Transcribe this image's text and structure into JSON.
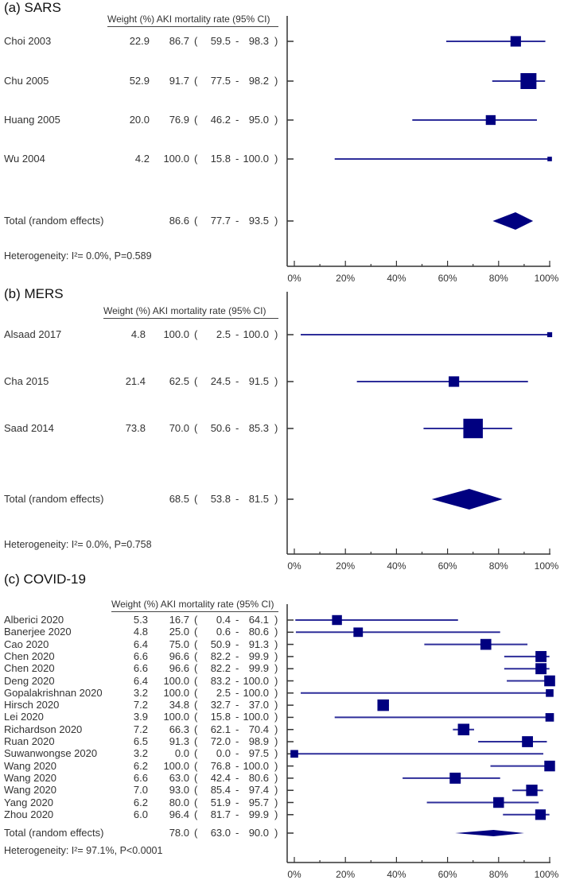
{
  "colors": {
    "mark": "#000080",
    "ci_line": "#2e2e9a",
    "axis": "#333333"
  },
  "chart_data": [
    {
      "type": "forest",
      "title": "(a) SARS",
      "header": "Weight (%) AKI mortality rate (95% CI)",
      "xlim": [
        0,
        100
      ],
      "xticks": [
        "0%",
        "20%",
        "40%",
        "60%",
        "80%",
        "100%"
      ],
      "studies": [
        {
          "name": "Choi 2003",
          "weight": 22.9,
          "est": 86.7,
          "lo": 59.5,
          "hi": 98.3
        },
        {
          "name": "Chu 2005",
          "weight": 52.9,
          "est": 91.7,
          "lo": 77.5,
          "hi": 98.2
        },
        {
          "name": "Huang 2005",
          "weight": 20.0,
          "est": 76.9,
          "lo": 46.2,
          "hi": 95.0
        },
        {
          "name": "Wu 2004",
          "weight": 4.2,
          "est": 100.0,
          "lo": 15.8,
          "hi": 100.0
        }
      ],
      "total": {
        "name": "Total (random effects)",
        "est": 86.6,
        "lo": 77.7,
        "hi": 93.5
      },
      "heterogeneity": "Heterogeneity: I²= 0.0%, P=0.589"
    },
    {
      "type": "forest",
      "title": "(b) MERS",
      "header": "Weight (%) AKI mortality rate (95% CI)",
      "xlim": [
        0,
        100
      ],
      "xticks": [
        "0%",
        "20%",
        "40%",
        "60%",
        "80%",
        "100%"
      ],
      "studies": [
        {
          "name": "Alsaad 2017",
          "weight": 4.8,
          "est": 100.0,
          "lo": 2.5,
          "hi": 100.0
        },
        {
          "name": "Cha 2015",
          "weight": 21.4,
          "est": 62.5,
          "lo": 24.5,
          "hi": 91.5
        },
        {
          "name": "Saad 2014",
          "weight": 73.8,
          "est": 70.0,
          "lo": 50.6,
          "hi": 85.3
        }
      ],
      "total": {
        "name": "Total (random effects)",
        "est": 68.5,
        "lo": 53.8,
        "hi": 81.5
      },
      "heterogeneity": "Heterogeneity: I²= 0.0%, P=0.758"
    },
    {
      "type": "forest",
      "title": "(c) COVID-19",
      "header": "Weight (%) AKI mortality rate (95% CI)",
      "xlim": [
        0,
        100
      ],
      "xticks": [
        "0%",
        "20%",
        "40%",
        "60%",
        "80%",
        "100%"
      ],
      "studies": [
        {
          "name": "Alberici 2020",
          "weight": 5.3,
          "est": 16.7,
          "lo": 0.4,
          "hi": 64.1
        },
        {
          "name": "Banerjee 2020",
          "weight": 4.8,
          "est": 25.0,
          "lo": 0.6,
          "hi": 80.6
        },
        {
          "name": "Cao 2020",
          "weight": 6.4,
          "est": 75.0,
          "lo": 50.9,
          "hi": 91.3
        },
        {
          "name": "Chen 2020",
          "weight": 6.6,
          "est": 96.6,
          "lo": 82.2,
          "hi": 99.9
        },
        {
          "name": "Chen 2020",
          "weight": 6.6,
          "est": 96.6,
          "lo": 82.2,
          "hi": 99.9
        },
        {
          "name": "Deng 2020",
          "weight": 6.4,
          "est": 100.0,
          "lo": 83.2,
          "hi": 100.0
        },
        {
          "name": "Gopalakrishnan 2020",
          "weight": 3.2,
          "est": 100.0,
          "lo": 2.5,
          "hi": 100.0
        },
        {
          "name": "Hirsch 2020",
          "weight": 7.2,
          "est": 34.8,
          "lo": 32.7,
          "hi": 37.0
        },
        {
          "name": "Lei 2020",
          "weight": 3.9,
          "est": 100.0,
          "lo": 15.8,
          "hi": 100.0
        },
        {
          "name": "Richardson 2020",
          "weight": 7.2,
          "est": 66.3,
          "lo": 62.1,
          "hi": 70.4
        },
        {
          "name": "Ruan 2020",
          "weight": 6.5,
          "est": 91.3,
          "lo": 72.0,
          "hi": 98.9
        },
        {
          "name": "Suwanwongse 2020",
          "weight": 3.2,
          "est": 0.0,
          "lo": 0.0,
          "hi": 97.5
        },
        {
          "name": "Wang 2020",
          "weight": 6.2,
          "est": 100.0,
          "lo": 76.8,
          "hi": 100.0
        },
        {
          "name": "Wang 2020",
          "weight": 6.6,
          "est": 63.0,
          "lo": 42.4,
          "hi": 80.6
        },
        {
          "name": "Wang 2020",
          "weight": 7.0,
          "est": 93.0,
          "lo": 85.4,
          "hi": 97.4
        },
        {
          "name": "Yang 2020",
          "weight": 6.2,
          "est": 80.0,
          "lo": 51.9,
          "hi": 95.7
        },
        {
          "name": "Zhou 2020",
          "weight": 6.0,
          "est": 96.4,
          "lo": 81.7,
          "hi": 99.9
        }
      ],
      "total": {
        "name": "Total (random effects)",
        "est": 78.0,
        "lo": 63.0,
        "hi": 90.0
      },
      "heterogeneity": "Heterogeneity: I²= 97.1%, P<0.0001"
    }
  ]
}
